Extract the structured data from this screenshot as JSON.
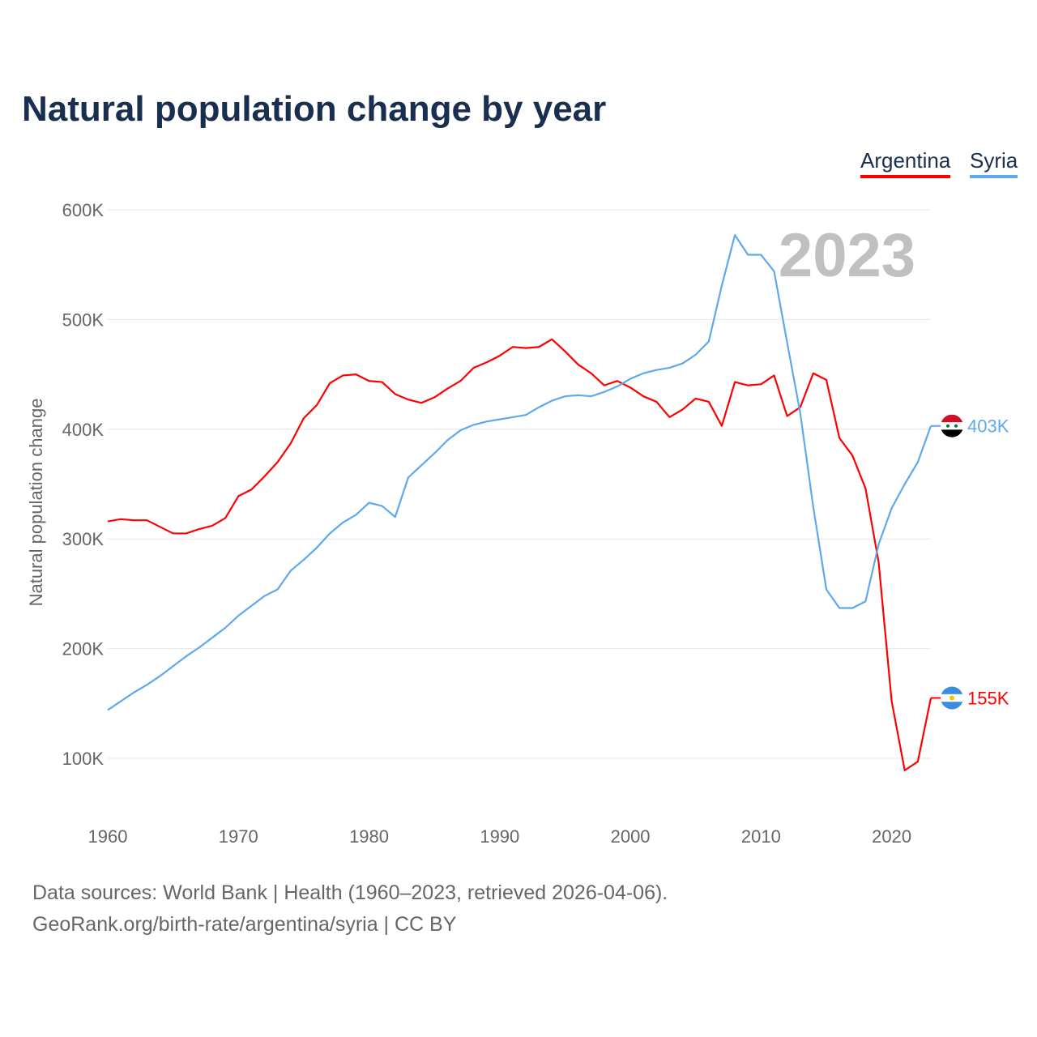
{
  "title": "Natural population change by year",
  "sources_line1": "Data sources: World Bank | Health (1960–2023, retrieved 2026-04-06).",
  "sources_line2": "GeoRank.org/birth-rate/argentina/syria | CC BY",
  "chart_data": {
    "type": "line",
    "title": "Natural population change by year",
    "xlabel": "",
    "ylabel": "Natural population change",
    "year_watermark": "2023",
    "x": [
      1960,
      1961,
      1962,
      1963,
      1964,
      1965,
      1966,
      1967,
      1968,
      1969,
      1970,
      1971,
      1972,
      1973,
      1974,
      1975,
      1976,
      1977,
      1978,
      1979,
      1980,
      1981,
      1982,
      1983,
      1984,
      1985,
      1986,
      1987,
      1988,
      1989,
      1990,
      1991,
      1992,
      1993,
      1994,
      1995,
      1996,
      1997,
      1998,
      1999,
      2000,
      2001,
      2002,
      2003,
      2004,
      2005,
      2006,
      2007,
      2008,
      2009,
      2010,
      2011,
      2012,
      2013,
      2014,
      2015,
      2016,
      2017,
      2018,
      2019,
      2020,
      2021,
      2022,
      2023
    ],
    "xlim": [
      1960,
      2023
    ],
    "ylim": [
      50000,
      600000
    ],
    "x_ticks": [
      1960,
      1970,
      1980,
      1990,
      2000,
      2010,
      2020
    ],
    "x_tick_labels": [
      "1960",
      "1970",
      "1980",
      "1990",
      "2000",
      "2010",
      "2020"
    ],
    "y_ticks": [
      100000,
      200000,
      300000,
      400000,
      500000,
      600000
    ],
    "y_tick_labels": [
      "100K",
      "200K",
      "300K",
      "400K",
      "500K",
      "600K"
    ],
    "grid": true,
    "legend_position": "top-right",
    "series": [
      {
        "name": "Argentina",
        "color": "#ff0000",
        "end_label": "155K",
        "flag": "argentina-flag",
        "values": [
          316,
          318,
          317,
          317,
          311,
          305,
          305,
          309,
          312,
          319,
          339,
          345,
          357,
          370,
          387,
          410,
          422,
          442,
          449,
          450,
          444,
          443,
          432,
          427,
          424,
          429,
          437,
          444,
          456,
          461,
          467,
          475,
          474,
          475,
          482,
          471,
          459,
          451,
          440,
          444,
          438,
          430,
          425,
          411,
          418,
          428,
          425,
          403,
          443,
          440,
          441,
          449,
          412,
          420,
          451,
          445,
          392,
          376,
          346,
          279,
          152,
          89,
          97,
          155
        ],
        "unit_multiplier": 1000
      },
      {
        "name": "Syria",
        "color": "#5ea8ee",
        "end_label": "403K",
        "flag": "syria-flag",
        "values": [
          144,
          152,
          160,
          167,
          175,
          184,
          193,
          201,
          210,
          219,
          230,
          239,
          248,
          254,
          271,
          281,
          292,
          305,
          315,
          322,
          333,
          330,
          320,
          356,
          367,
          378,
          390,
          399,
          404,
          407,
          409,
          411,
          413,
          420,
          426,
          430,
          431,
          430,
          434,
          439,
          446,
          451,
          454,
          456,
          460,
          468,
          480,
          531,
          577,
          559,
          559,
          544,
          479,
          415,
          329,
          254,
          237,
          237,
          243,
          295,
          328,
          350,
          370,
          403
        ],
        "unit_multiplier": 1000
      }
    ]
  }
}
